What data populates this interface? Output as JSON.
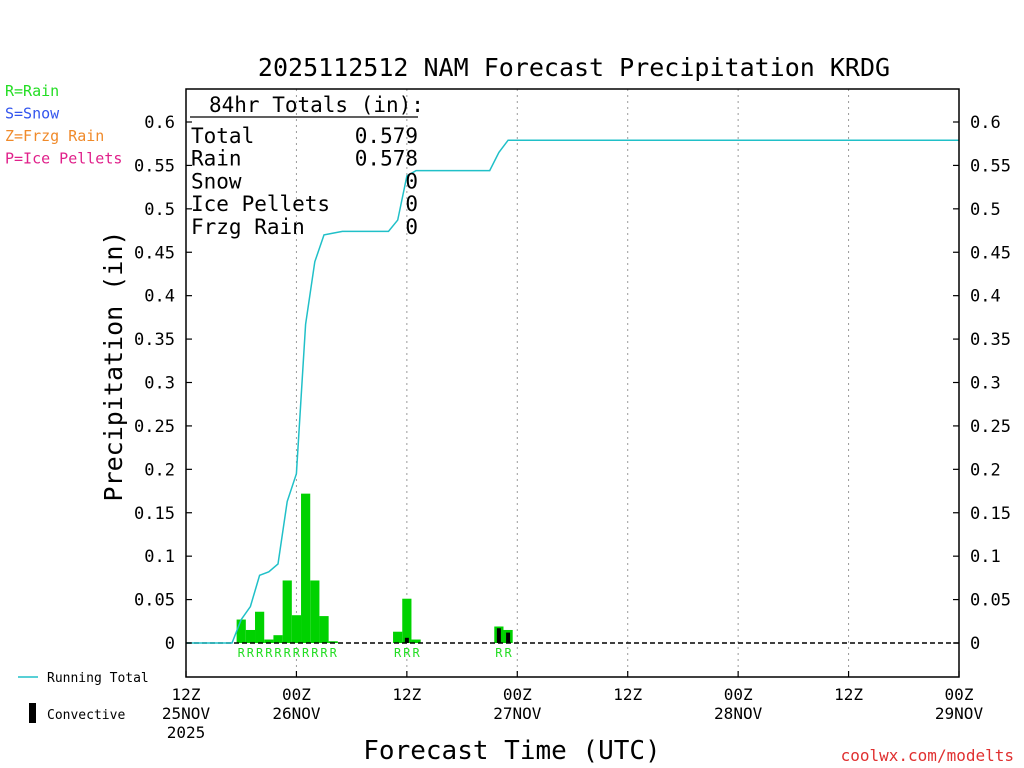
{
  "chart_data": {
    "type": "bar",
    "title": "2025112512 NAM Forecast Precipitation KRDG",
    "ylabel": "Precipitation (in)",
    "xlabel": "Forecast Time (UTC)",
    "ylim": [
      -0.04,
      0.64
    ],
    "yticks": [
      "0",
      "0.05",
      "0.1",
      "0.15",
      "0.2",
      "0.25",
      "0.3",
      "0.35",
      "0.4",
      "0.45",
      "0.5",
      "0.55",
      "0.6"
    ],
    "xlim_hours": [
      0,
      84
    ],
    "xticks": [
      {
        "hour": 0,
        "l1": "12Z",
        "l2": "25NOV",
        "l3": "2025"
      },
      {
        "hour": 12,
        "l1": "00Z",
        "l2": "26NOV",
        "l3": ""
      },
      {
        "hour": 24,
        "l1": "12Z",
        "l2": "",
        "l3": ""
      },
      {
        "hour": 36,
        "l1": "00Z",
        "l2": "27NOV",
        "l3": ""
      },
      {
        "hour": 48,
        "l1": "12Z",
        "l2": "",
        "l3": ""
      },
      {
        "hour": 60,
        "l1": "00Z",
        "l2": "28NOV",
        "l3": ""
      },
      {
        "hour": 72,
        "l1": "12Z",
        "l2": "",
        "l3": ""
      },
      {
        "hour": 84,
        "l1": "00Z",
        "l2": "29NOV",
        "l3": ""
      }
    ],
    "legend_types": [
      {
        "text": "R=Rain",
        "color": "#22dd22"
      },
      {
        "text": "S=Snow",
        "color": "#3355ee"
      },
      {
        "text": "Z=Frzg Rain",
        "color": "#f08a2a"
      },
      {
        "text": "P=Ice Pellets",
        "color": "#e0208a"
      }
    ],
    "totals": {
      "header": "84hr Totals (in):",
      "rows": [
        {
          "label": "Total",
          "value": "0.579"
        },
        {
          "label": "Rain",
          "value": "0.578"
        },
        {
          "label": "Snow",
          "value": "0"
        },
        {
          "label": "Ice Pellets",
          "value": "0"
        },
        {
          "label": "Frzg Rain",
          "value": "0"
        }
      ]
    },
    "bars": [
      {
        "hour": 6,
        "value": 0.027
      },
      {
        "hour": 7,
        "value": 0.015
      },
      {
        "hour": 8,
        "value": 0.036
      },
      {
        "hour": 9,
        "value": 0.004
      },
      {
        "hour": 10,
        "value": 0.009
      },
      {
        "hour": 11,
        "value": 0.072
      },
      {
        "hour": 12,
        "value": 0.032
      },
      {
        "hour": 13,
        "value": 0.172
      },
      {
        "hour": 14,
        "value": 0.072
      },
      {
        "hour": 15,
        "value": 0.031
      },
      {
        "hour": 16,
        "value": 0.002
      },
      {
        "hour": 23,
        "value": 0.013
      },
      {
        "hour": 24,
        "value": 0.051
      },
      {
        "hour": 25,
        "value": 0.004
      },
      {
        "hour": 34,
        "value": 0.019
      },
      {
        "hour": 35,
        "value": 0.015
      }
    ],
    "convective": [
      {
        "hour": 24,
        "value": 0.006
      },
      {
        "hour": 34,
        "value": 0.017
      },
      {
        "hour": 35,
        "value": 0.012
      }
    ],
    "running_total": {
      "hours": [
        0,
        5,
        6,
        7,
        8,
        9,
        10,
        11,
        12,
        13,
        14,
        15,
        16,
        17,
        22,
        23,
        24,
        25,
        33,
        34,
        35,
        84
      ],
      "values": [
        0,
        0,
        0.027,
        0.042,
        0.078,
        0.082,
        0.091,
        0.163,
        0.195,
        0.367,
        0.439,
        0.47,
        0.472,
        0.474,
        0.474,
        0.487,
        0.538,
        0.544,
        0.544,
        0.565,
        0.579,
        0.579
      ]
    },
    "type_labels": [
      {
        "hour": 6,
        "text": "R"
      },
      {
        "hour": 7,
        "text": "R"
      },
      {
        "hour": 8,
        "text": "R"
      },
      {
        "hour": 9,
        "text": "R"
      },
      {
        "hour": 10,
        "text": "R"
      },
      {
        "hour": 11,
        "text": "R"
      },
      {
        "hour": 12,
        "text": "R"
      },
      {
        "hour": 13,
        "text": "R"
      },
      {
        "hour": 14,
        "text": "R"
      },
      {
        "hour": 15,
        "text": "R"
      },
      {
        "hour": 16,
        "text": "R"
      },
      {
        "hour": 23,
        "text": "R"
      },
      {
        "hour": 24,
        "text": "R"
      },
      {
        "hour": 25,
        "text": "R"
      },
      {
        "hour": 34,
        "text": "R"
      },
      {
        "hour": 35,
        "text": "R"
      }
    ],
    "legend_bottom": {
      "running_total": "Running Total",
      "convective": "Convective"
    },
    "credit": "coolwx.com/modelts",
    "colors": {
      "bar": "#00d200",
      "convective": "#000000",
      "line": "#20c0c8",
      "rain": "#22dd22",
      "credit": "#e03030"
    }
  }
}
